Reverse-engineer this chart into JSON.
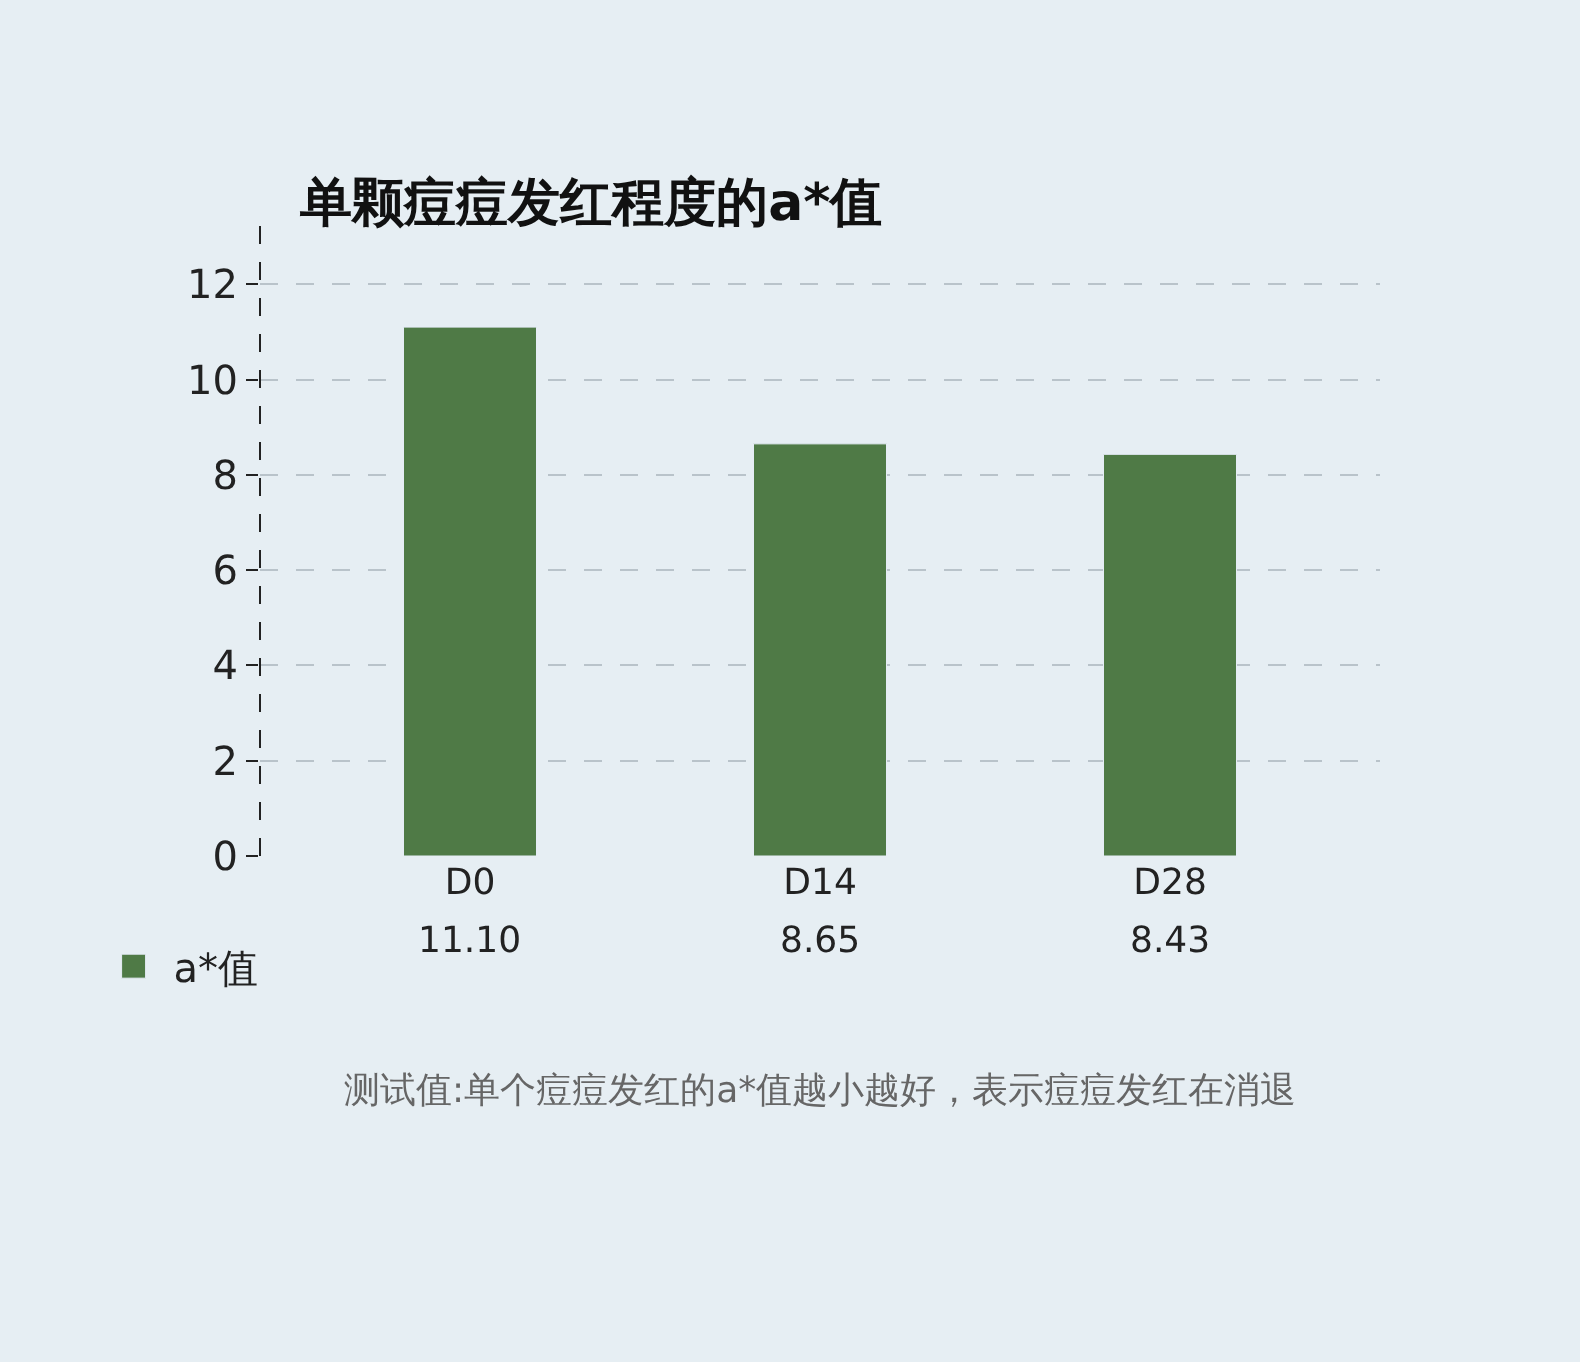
{
  "chart_data": {
    "type": "bar",
    "title": "单颗痘痘发红程度的a*值",
    "categories": [
      "D0",
      "D14",
      "D28"
    ],
    "series": [
      {
        "name": "a*值",
        "color": "#4f7a46",
        "values": [
          11.1,
          8.65,
          8.43
        ],
        "value_labels": [
          "11.10",
          "8.65",
          "8.43"
        ]
      }
    ],
    "ylim": [
      0,
      13.6
    ],
    "yticks": [
      0,
      2,
      4,
      6,
      8,
      10,
      12
    ],
    "grid": "y",
    "legend": "bottom left",
    "annotations": [
      "测试值:单个痘痘发红的a*值越小越好，表示痘痘发红在消退"
    ]
  }
}
